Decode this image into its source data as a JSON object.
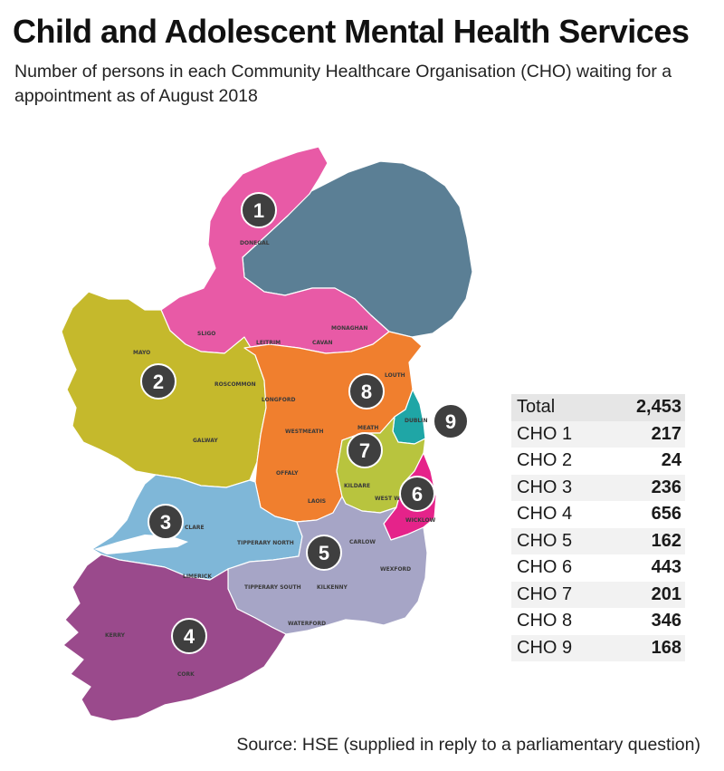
{
  "title": "Child and Adolescent Mental Health Services",
  "subtitle": "Number of persons in each Community Healthcare Organisation (CHO) waiting for a appointment as of August 2018",
  "source": "Source: HSE (supplied in reply to a parliamentary question)",
  "colors": {
    "cho1": "#e85aa6",
    "cho2": "#c5b92c",
    "cho3": "#7fb7d8",
    "cho4": "#9a4a8c",
    "cho5": "#a6a5c6",
    "cho6": "#e5238a",
    "cho7": "#b8c43e",
    "cho8": "#f07f2e",
    "cho9": "#1fa6a6",
    "northern_ireland": "#5b7f95",
    "badge": "#3f3f3f"
  },
  "map": {
    "badges": [
      "1",
      "2",
      "3",
      "4",
      "5",
      "6",
      "7",
      "8",
      "9"
    ],
    "counties": {
      "donegal": "DONEGAL",
      "sligo": "SLIGO",
      "leitrim": "LEITRIM",
      "cavan": "CAVAN",
      "monaghan": "MONAGHAN",
      "mayo": "MAYO",
      "roscommon": "ROSCOMMON",
      "galway": "GALWAY",
      "longford": "LONGFORD",
      "westmeath": "WESTMEATH",
      "louth": "LOUTH",
      "meath": "MEATH",
      "offaly": "OFFALY",
      "laois": "LAOIS",
      "kildare": "KILDARE",
      "west_wicklow": "WEST WICKLOW",
      "wicklow": "WICKLOW",
      "dublin_west": "DUBLIN",
      "clare": "CLARE",
      "tipperary_north": "TIPPERARY NORTH",
      "limerick": "LIMERICK",
      "tipperary_south": "TIPPERARY SOUTH",
      "carlow": "CARLOW",
      "kilkenny": "KILKENNY",
      "wexford": "WEXFORD",
      "waterford": "WATERFORD",
      "kerry": "KERRY",
      "cork": "CORK"
    }
  },
  "table": {
    "rows": [
      {
        "label": "Total",
        "value": "2,453"
      },
      {
        "label": "CHO 1",
        "value": "217"
      },
      {
        "label": "CHO 2",
        "value": "24"
      },
      {
        "label": "CHO 3",
        "value": "236"
      },
      {
        "label": "CHO 4",
        "value": "656"
      },
      {
        "label": "CHO 5",
        "value": "162"
      },
      {
        "label": "CHO 6",
        "value": "443"
      },
      {
        "label": "CHO 7",
        "value": "201"
      },
      {
        "label": "CHO 8",
        "value": "346"
      },
      {
        "label": "CHO 9",
        "value": "168"
      }
    ]
  }
}
